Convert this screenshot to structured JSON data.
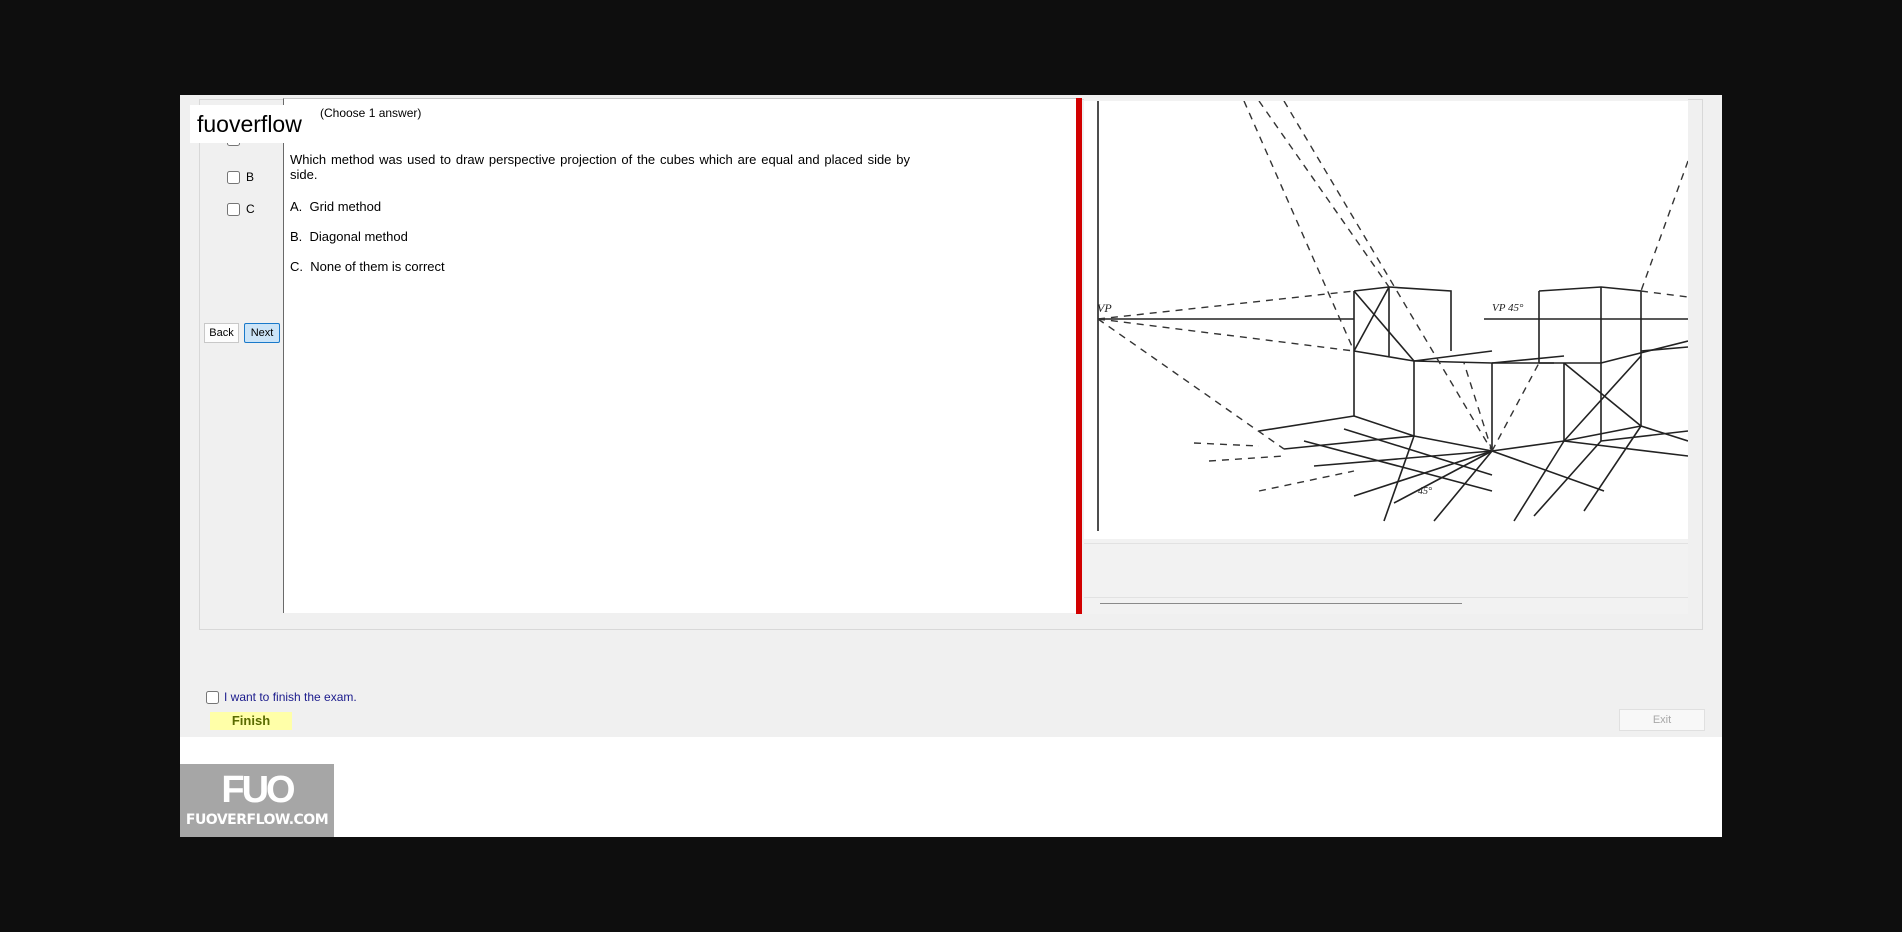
{
  "overlay": {
    "logo_text": "fuoverflow"
  },
  "answer_choices": [
    {
      "label": "A",
      "checked": false
    },
    {
      "label": "B",
      "checked": false
    },
    {
      "label": "C",
      "checked": false
    }
  ],
  "navigation": {
    "back_label": "Back",
    "next_label": "Next"
  },
  "question": {
    "header": "(Choose 1 answer)",
    "text": "Which method was used to draw perspective projection of the cubes which are equal and placed side by side.",
    "options": [
      {
        "letter": "A.",
        "text": "Grid method"
      },
      {
        "letter": "B.",
        "text": "Diagonal method"
      },
      {
        "letter": "C.",
        "text": "None of them is correct"
      }
    ]
  },
  "figure": {
    "label_vp_left": "VP",
    "label_vp_right": "VP 45°",
    "label_angle": "45°"
  },
  "exam_footer": {
    "finish_checkbox_label": "I want to finish the exam.",
    "finish_label": "Finish",
    "exit_label": "Exit"
  },
  "brand": {
    "mark": "FUO",
    "url": "FUOVERFLOW.COM"
  },
  "colors": {
    "divider_red": "#d20000",
    "next_button_bg": "#cce4f7",
    "finish_bg": "#ffffa8"
  }
}
